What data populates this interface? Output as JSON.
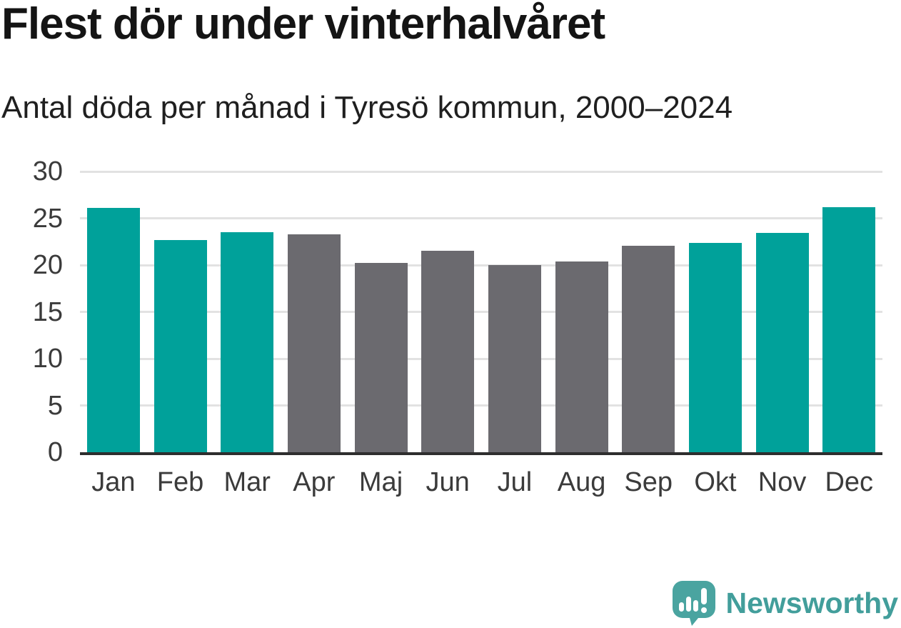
{
  "header": {
    "title": "Flest dör under vinterhalvåret",
    "subtitle": "Antal döda per månad i Tyresö kommun, 2000–2024"
  },
  "colors": {
    "highlight_bar": "#00a19a",
    "default_bar": "#6b6a6f",
    "gridline": "#e2e2e2",
    "axis_line": "#2e2e2e",
    "tick_text": "#3b3b3b",
    "title_text": "#141414",
    "brand_teal": "#429e9b"
  },
  "chart_data": {
    "type": "bar",
    "title": "Flest dör under vinterhalvåret",
    "subtitle": "Antal döda per månad i Tyresö kommun, 2000–2024",
    "categories": [
      "Jan",
      "Feb",
      "Mar",
      "Apr",
      "Maj",
      "Jun",
      "Jul",
      "Aug",
      "Sep",
      "Okt",
      "Nov",
      "Dec"
    ],
    "values": [
      26.1,
      22.7,
      23.5,
      23.3,
      20.2,
      21.5,
      20.0,
      20.4,
      22.1,
      22.4,
      23.4,
      26.2
    ],
    "highlighted_categories": [
      "Jan",
      "Feb",
      "Mar",
      "Okt",
      "Nov",
      "Dec"
    ],
    "xlabel": "",
    "ylabel": "",
    "ylim": [
      0,
      30
    ],
    "yticks": [
      0,
      5,
      10,
      15,
      20,
      25,
      30
    ],
    "grid": "horizontal",
    "legend": "none"
  },
  "branding": {
    "name": "Newsworthy",
    "logo_icon": "speech-bubble-bar-chart-icon"
  }
}
